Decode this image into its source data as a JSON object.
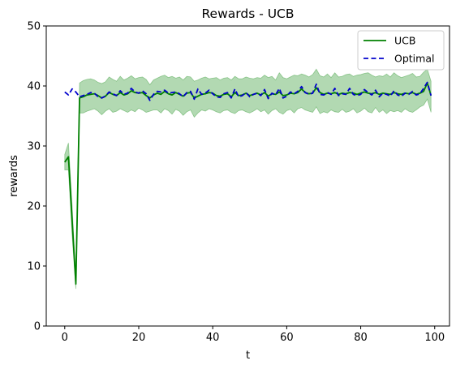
{
  "chart_data": {
    "type": "line",
    "title": "Rewards - UCB",
    "xlabel": "t",
    "ylabel": "rewards",
    "xlim": [
      -5,
      104
    ],
    "ylim": [
      0,
      50
    ],
    "xticks": [
      0,
      20,
      40,
      60,
      80,
      100
    ],
    "yticks": [
      0,
      10,
      20,
      30,
      40,
      50
    ],
    "grid": false,
    "legend": {
      "position": "top-right"
    },
    "x": [
      0,
      1,
      2,
      3,
      4,
      5,
      6,
      7,
      8,
      9,
      10,
      11,
      12,
      13,
      14,
      15,
      16,
      17,
      18,
      19,
      20,
      21,
      22,
      23,
      24,
      25,
      26,
      27,
      28,
      29,
      30,
      31,
      32,
      33,
      34,
      35,
      36,
      37,
      38,
      39,
      40,
      41,
      42,
      43,
      44,
      45,
      46,
      47,
      48,
      49,
      50,
      51,
      52,
      53,
      54,
      55,
      56,
      57,
      58,
      59,
      60,
      61,
      62,
      63,
      64,
      65,
      66,
      67,
      68,
      69,
      70,
      71,
      72,
      73,
      74,
      75,
      76,
      77,
      78,
      79,
      80,
      81,
      82,
      83,
      84,
      85,
      86,
      87,
      88,
      89,
      90,
      91,
      92,
      93,
      94,
      95,
      96,
      97,
      98,
      99
    ],
    "series": [
      {
        "name": "UCB",
        "style": "solid",
        "color": "#008000",
        "values": [
          27.3,
          28.2,
          17.5,
          7.0,
          38.0,
          38.2,
          38.5,
          38.6,
          38.7,
          38.4,
          38.0,
          38.3,
          38.9,
          38.6,
          38.4,
          38.9,
          38.5,
          38.7,
          39.2,
          38.9,
          38.8,
          38.9,
          38.4,
          38.0,
          38.5,
          38.8,
          38.6,
          39.1,
          38.7,
          38.5,
          38.9,
          38.6,
          38.3,
          38.8,
          38.9,
          38.0,
          38.3,
          38.6,
          38.7,
          38.9,
          38.8,
          38.4,
          38.3,
          38.6,
          38.7,
          38.2,
          38.9,
          38.4,
          38.5,
          38.8,
          38.4,
          38.6,
          38.8,
          38.5,
          38.9,
          38.3,
          38.7,
          38.6,
          39.0,
          38.4,
          38.5,
          38.8,
          38.7,
          38.9,
          39.5,
          38.9,
          38.7,
          38.8,
          39.7,
          38.9,
          38.6,
          38.8,
          38.7,
          38.9,
          38.6,
          38.8,
          38.7,
          38.9,
          38.8,
          38.6,
          38.8,
          39.0,
          38.8,
          38.7,
          38.9,
          38.6,
          38.8,
          38.7,
          38.6,
          38.9,
          38.7,
          38.6,
          38.8,
          38.7,
          38.9,
          38.6,
          38.8,
          39.1,
          40.5,
          38.4
        ],
        "band_lower": [
          26.0,
          26.0,
          15.0,
          6.2,
          35.5,
          35.5,
          35.8,
          36.0,
          36.2,
          35.8,
          35.2,
          35.8,
          36.2,
          35.6,
          35.8,
          36.2,
          35.9,
          35.6,
          36.0,
          35.7,
          36.3,
          36.0,
          35.6,
          35.8,
          36.0,
          36.0,
          35.5,
          36.2,
          35.9,
          35.3,
          36.1,
          35.8,
          35.1,
          35.7,
          36.0,
          34.8,
          35.5,
          36.0,
          35.8,
          36.2,
          36.0,
          35.7,
          35.5,
          35.9,
          36.0,
          35.6,
          35.4,
          35.9,
          36.0,
          35.7,
          35.5,
          35.8,
          36.2,
          35.7,
          36.0,
          35.3,
          35.9,
          36.2,
          35.6,
          35.3,
          35.9,
          36.1,
          35.5,
          36.2,
          36.4,
          36.0,
          35.8,
          35.6,
          36.5,
          35.4,
          35.7,
          35.5,
          36.0,
          35.7,
          35.6,
          36.1,
          35.6,
          35.8,
          36.2,
          35.5,
          35.8,
          36.3,
          35.7,
          35.5,
          36.4,
          35.6,
          36.0,
          35.4,
          35.9,
          35.7,
          35.9,
          35.6,
          36.2,
          35.8,
          35.6,
          36.0,
          36.5,
          36.8,
          37.8,
          35.6
        ],
        "band_upper": [
          28.6,
          30.5,
          20.0,
          7.8,
          40.5,
          40.9,
          41.1,
          41.2,
          41.0,
          40.6,
          40.4,
          40.7,
          41.5,
          41.1,
          40.8,
          41.6,
          41.0,
          41.3,
          41.7,
          41.2,
          41.4,
          41.5,
          41.1,
          40.2,
          41.0,
          41.3,
          41.6,
          41.8,
          41.4,
          41.6,
          41.3,
          41.5,
          41.0,
          41.6,
          41.5,
          40.8,
          41.0,
          41.3,
          41.5,
          41.2,
          41.3,
          41.4,
          41.0,
          41.3,
          41.4,
          41.0,
          41.6,
          41.2,
          41.2,
          41.5,
          41.3,
          41.2,
          41.4,
          41.3,
          41.8,
          41.4,
          41.6,
          41.0,
          42.2,
          41.4,
          41.2,
          41.5,
          41.8,
          41.7,
          42.0,
          41.8,
          41.5,
          41.9,
          42.8,
          41.7,
          41.5,
          42.0,
          41.4,
          42.2,
          41.5,
          41.6,
          41.9,
          42.0,
          41.6,
          41.8,
          41.9,
          42.1,
          42.2,
          41.8,
          41.5,
          41.7,
          41.6,
          42.0,
          41.5,
          42.2,
          41.7,
          41.4,
          41.6,
          41.8,
          42.1,
          41.5,
          41.6,
          42.3,
          42.8,
          40.8
        ]
      },
      {
        "name": "Optimal",
        "style": "dashed",
        "color": "#0000cc",
        "values": [
          39.0,
          38.5,
          39.5,
          39.0,
          38.2,
          38.4,
          38.6,
          38.9,
          38.8,
          38.2,
          38.0,
          38.3,
          39.0,
          38.7,
          38.4,
          39.2,
          38.6,
          38.8,
          39.6,
          39.0,
          38.8,
          39.2,
          38.7,
          37.6,
          38.6,
          39.1,
          39.0,
          39.3,
          38.8,
          38.9,
          39.0,
          38.7,
          38.2,
          38.9,
          39.1,
          37.8,
          39.5,
          38.6,
          38.8,
          39.3,
          38.7,
          38.2,
          38.1,
          38.7,
          38.9,
          38.0,
          39.5,
          38.2,
          38.4,
          38.9,
          38.2,
          38.6,
          38.8,
          38.4,
          39.4,
          37.9,
          38.8,
          38.5,
          39.6,
          38.0,
          38.3,
          39.0,
          38.7,
          39.1,
          39.9,
          38.9,
          38.6,
          38.8,
          40.3,
          38.6,
          38.5,
          38.9,
          38.6,
          39.6,
          38.4,
          38.7,
          38.6,
          39.6,
          38.6,
          38.4,
          38.6,
          39.4,
          38.9,
          38.5,
          39.3,
          38.2,
          38.8,
          38.6,
          38.3,
          39.2,
          38.5,
          38.3,
          38.8,
          38.6,
          39.1,
          38.5,
          38.7,
          39.6,
          40.6,
          38.4
        ]
      }
    ]
  }
}
